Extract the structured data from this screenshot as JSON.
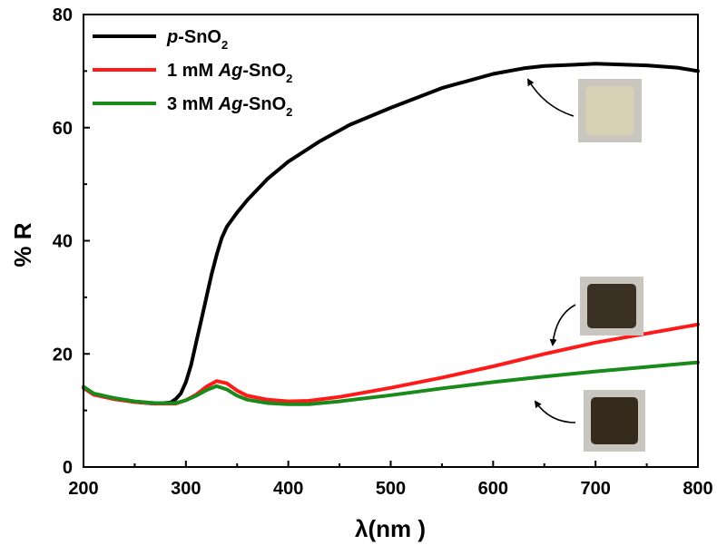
{
  "chart_data": {
    "type": "line",
    "title": "",
    "xlabel": "λ(nm )",
    "ylabel": "% R",
    "xlim": [
      200,
      800
    ],
    "ylim": [
      0,
      80
    ],
    "x_ticks": [
      200,
      300,
      400,
      500,
      600,
      700,
      800
    ],
    "y_ticks": [
      0,
      20,
      40,
      60,
      80
    ],
    "grid": false,
    "legend_position": "top-left",
    "series": [
      {
        "name": "p-SnO2",
        "name_parts": {
          "italic": "p",
          "main": "-SnO",
          "sub": "2"
        },
        "color": "#000000",
        "points": [
          [
            200,
            14.0
          ],
          [
            210,
            12.8
          ],
          [
            230,
            12.0
          ],
          [
            250,
            11.5
          ],
          [
            270,
            11.2
          ],
          [
            285,
            11.4
          ],
          [
            290,
            12.0
          ],
          [
            295,
            13.0
          ],
          [
            300,
            15.0
          ],
          [
            305,
            18.0
          ],
          [
            310,
            22.0
          ],
          [
            315,
            26.0
          ],
          [
            320,
            30.0
          ],
          [
            325,
            34.0
          ],
          [
            330,
            37.5
          ],
          [
            335,
            40.5
          ],
          [
            340,
            42.5
          ],
          [
            350,
            45.0
          ],
          [
            360,
            47.2
          ],
          [
            380,
            51.0
          ],
          [
            400,
            54.0
          ],
          [
            430,
            57.5
          ],
          [
            460,
            60.5
          ],
          [
            500,
            63.5
          ],
          [
            550,
            67.0
          ],
          [
            600,
            69.5
          ],
          [
            630,
            70.5
          ],
          [
            650,
            70.9
          ],
          [
            700,
            71.3
          ],
          [
            750,
            71.0
          ],
          [
            780,
            70.6
          ],
          [
            800,
            70.0
          ]
        ]
      },
      {
        "name": "1 mM Ag-SnO2",
        "name_parts": {
          "prefix": "1 mM ",
          "italic": "Ag",
          "main": "-SnO",
          "sub": "2"
        },
        "color": "#ff1a1a",
        "points": [
          [
            200,
            14.0
          ],
          [
            210,
            12.8
          ],
          [
            230,
            12.0
          ],
          [
            250,
            11.5
          ],
          [
            270,
            11.2
          ],
          [
            290,
            11.2
          ],
          [
            300,
            11.8
          ],
          [
            310,
            12.8
          ],
          [
            320,
            14.2
          ],
          [
            330,
            15.2
          ],
          [
            340,
            14.8
          ],
          [
            350,
            13.5
          ],
          [
            360,
            12.6
          ],
          [
            380,
            11.9
          ],
          [
            400,
            11.6
          ],
          [
            420,
            11.7
          ],
          [
            450,
            12.4
          ],
          [
            500,
            14.0
          ],
          [
            550,
            15.8
          ],
          [
            600,
            17.8
          ],
          [
            650,
            20.0
          ],
          [
            700,
            22.0
          ],
          [
            750,
            23.6
          ],
          [
            800,
            25.2
          ]
        ]
      },
      {
        "name": "3 mM Ag-SnO2",
        "name_parts": {
          "prefix": "3 mM ",
          "italic": "Ag",
          "main": "-SnO",
          "sub": "2"
        },
        "color": "#1a8a1a",
        "points": [
          [
            200,
            14.2
          ],
          [
            210,
            13.0
          ],
          [
            230,
            12.2
          ],
          [
            250,
            11.6
          ],
          [
            270,
            11.3
          ],
          [
            290,
            11.3
          ],
          [
            300,
            11.8
          ],
          [
            310,
            12.6
          ],
          [
            320,
            13.6
          ],
          [
            330,
            14.3
          ],
          [
            340,
            13.7
          ],
          [
            350,
            12.6
          ],
          [
            360,
            11.9
          ],
          [
            380,
            11.3
          ],
          [
            400,
            11.1
          ],
          [
            420,
            11.1
          ],
          [
            450,
            11.6
          ],
          [
            500,
            12.7
          ],
          [
            550,
            13.9
          ],
          [
            600,
            15.0
          ],
          [
            650,
            16.0
          ],
          [
            700,
            16.9
          ],
          [
            750,
            17.7
          ],
          [
            800,
            18.5
          ]
        ]
      }
    ]
  },
  "insets": [
    {
      "label": "p-SnO2 pellet photo",
      "color": "#d8d0b4",
      "series": 0
    },
    {
      "label": "1 mM Ag-SnO2 pellet photo",
      "color": "#3a3024",
      "series": 1
    },
    {
      "label": "3 mM Ag-SnO2 pellet photo",
      "color": "#352a1c",
      "series": 2
    }
  ]
}
